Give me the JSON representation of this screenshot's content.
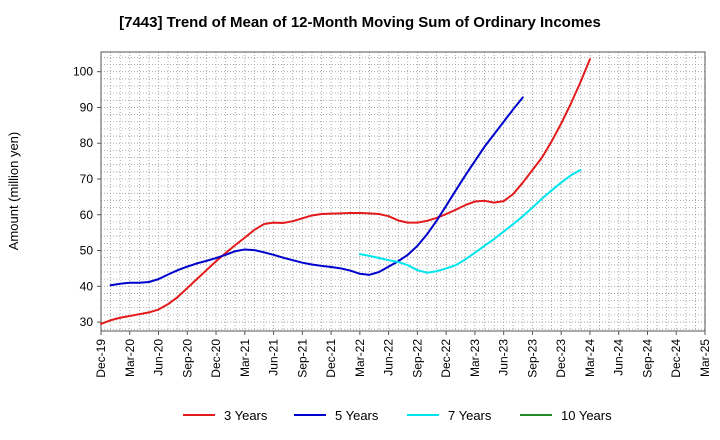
{
  "chart_data": {
    "type": "line",
    "title": "[7443]  Trend of Mean of 12-Month Moving Sum of Ordinary Incomes",
    "xlabel": "",
    "ylabel": "Amount (million yen)",
    "ylim": [
      27.5,
      105.5
    ],
    "yticks": [
      30,
      40,
      50,
      60,
      70,
      80,
      90,
      100
    ],
    "x_tick_labels": [
      "Dec-19",
      "Mar-20",
      "Jun-20",
      "Sep-20",
      "Dec-20",
      "Mar-21",
      "Jun-21",
      "Sep-21",
      "Dec-21",
      "Mar-22",
      "Jun-22",
      "Sep-22",
      "Dec-22",
      "Mar-23",
      "Jun-23",
      "Sep-23",
      "Dec-23",
      "Mar-24",
      "Jun-24",
      "Sep-24",
      "Dec-24",
      "Mar-25"
    ],
    "grid": true,
    "legend_position": "bottom",
    "series": [
      {
        "name": "3 Years",
        "color": "#e31a1c",
        "start_index": 0,
        "values": [
          29.5,
          30.5,
          31.2,
          31.7,
          32.2,
          32.7,
          33.5,
          35.0,
          37.0,
          39.5,
          42.0,
          44.5,
          47.0,
          49.3,
          51.5,
          53.6,
          55.8,
          57.4,
          57.8,
          57.7,
          58.2,
          59.0,
          59.8,
          60.2,
          60.3,
          60.4,
          60.5,
          60.5,
          60.4,
          60.2,
          59.6,
          58.4,
          57.8,
          57.8,
          58.3,
          59.1,
          60.2,
          61.4,
          62.7,
          63.7,
          63.9,
          63.4,
          63.8,
          65.8,
          69.0,
          72.5,
          76.0,
          80.5,
          85.5,
          91.0,
          97.0,
          103.5
        ]
      },
      {
        "name": "5 Years",
        "color": "#0000cc",
        "start_index": 1,
        "values": [
          40.3,
          40.7,
          41.0,
          41.0,
          41.2,
          42.0,
          43.3,
          44.5,
          45.5,
          46.4,
          47.1,
          47.9,
          48.8,
          49.8,
          50.3,
          50.1,
          49.5,
          48.8,
          48.0,
          47.3,
          46.6,
          46.1,
          45.7,
          45.4,
          45.0,
          44.4,
          43.5,
          43.2,
          44.0,
          45.5,
          47.0,
          48.8,
          51.3,
          54.5,
          58.3,
          62.5,
          66.8,
          71.0,
          75.0,
          79.0,
          82.5,
          86.0,
          89.5,
          92.8
        ]
      },
      {
        "name": "7 Years",
        "color": "#00e5ee",
        "start_index": 27,
        "values": [
          49.0,
          48.5,
          47.9,
          47.3,
          46.8,
          45.9,
          44.5,
          43.8,
          44.2,
          45.0,
          45.9,
          47.5,
          49.4,
          51.3,
          53.2,
          55.3,
          57.4,
          59.6,
          62.0,
          64.5,
          66.8,
          69.0,
          71.0,
          72.5
        ]
      },
      {
        "name": "10 Years",
        "color": "#228b22",
        "start_index": 0,
        "values": []
      }
    ]
  }
}
